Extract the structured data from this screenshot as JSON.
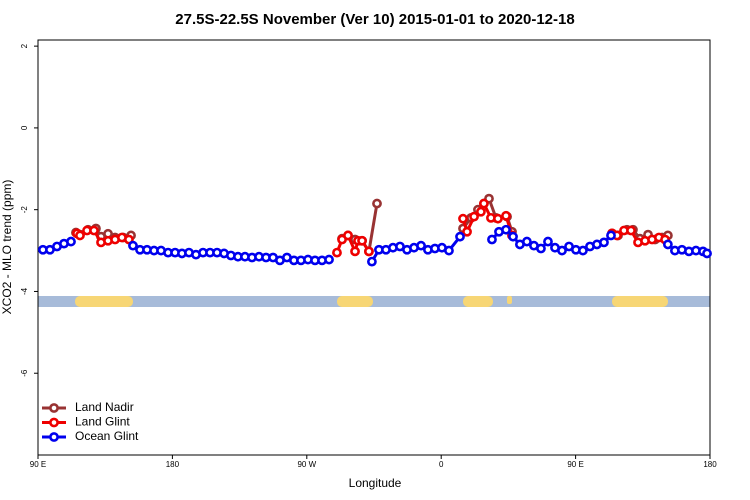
{
  "chart_data": {
    "type": "line",
    "title": "27.5S-22.5S November (Ver 10)   2015-01-01 to 2020-12-18",
    "xlabel": "Longitude",
    "ylabel": "XCO2 - MLO trend (ppm)",
    "xlim": [
      90,
      540
    ],
    "xticks": [
      {
        "value": 90,
        "label": "90 E"
      },
      {
        "value": 180,
        "label": "180"
      },
      {
        "value": 270,
        "label": "90 W"
      },
      {
        "value": 360,
        "label": "0"
      },
      {
        "value": 450,
        "label": "90 E"
      },
      {
        "value": 540,
        "label": "180"
      }
    ],
    "ylim": [
      -8,
      2.15
    ],
    "yticks": [
      2,
      0,
      -2,
      -4,
      -6
    ],
    "legend": "bottom-left",
    "series": [
      {
        "name": "Land Nadir",
        "color": "#993333",
        "x": [
          115.4,
          118.1,
          123.5,
          128.8,
          132.2,
          136.9,
          141.6,
          147.0,
          152.3,
          null,
          293.6,
          297.6,
          302.3,
          307.0,
          311.6,
          317.0,
          null,
          374.6,
          380.0,
          384.6,
          388.6,
          392.0,
          396.7,
          404.1,
          407.4,
          null,
          474.4,
          478.4,
          484.4,
          488.4,
          493.1,
          498.5,
          503.2,
          507.9,
          511.8
        ],
        "values": [
          -2.56,
          -2.61,
          -2.49,
          -2.46,
          -2.66,
          -2.59,
          -2.68,
          -2.68,
          -2.63,
          null,
          -2.71,
          -2.63,
          -2.73,
          -2.76,
          -3.02,
          -1.85,
          null,
          -2.46,
          -2.2,
          -2.0,
          -1.85,
          -1.73,
          -2.2,
          -2.17,
          -2.54,
          null,
          -2.58,
          -2.63,
          -2.49,
          -2.49,
          -2.71,
          -2.61,
          -2.73,
          -2.68,
          -2.63
        ]
      },
      {
        "name": "Land Glint",
        "color": "#ee0000",
        "x": [
          116.1,
          118.1,
          122.8,
          127.5,
          132.2,
          136.9,
          141.6,
          146.2,
          150.9,
          null,
          290.2,
          293.6,
          297.6,
          302.3,
          304.3,
          307.0,
          311.6,
          null,
          374.6,
          377.3,
          382.0,
          386.6,
          388.6,
          393.3,
          398.0,
          403.4,
          407.4,
          null,
          474.4,
          477.7,
          482.4,
          487.1,
          491.8,
          496.5,
          501.2,
          505.8,
          509.9
        ],
        "values": [
          -2.58,
          -2.63,
          -2.51,
          -2.51,
          -2.8,
          -2.76,
          -2.73,
          -2.68,
          -2.73,
          null,
          -3.05,
          -2.73,
          -2.63,
          -3.02,
          -2.76,
          -2.76,
          -3.02,
          null,
          -2.22,
          -2.54,
          -2.17,
          -2.05,
          -1.85,
          -2.2,
          -2.22,
          -2.15,
          -2.63,
          null,
          -2.58,
          -2.63,
          -2.51,
          -2.51,
          -2.8,
          -2.76,
          -2.73,
          -2.68,
          -2.73
        ]
      },
      {
        "name": "Ocean Glint",
        "color": "#0000ee",
        "x": [
          93.3,
          98.0,
          102.7,
          107.4,
          112.1,
          null,
          153.6,
          158.3,
          163.0,
          167.7,
          172.4,
          177.1,
          181.8,
          186.4,
          191.1,
          195.8,
          200.5,
          205.2,
          209.9,
          214.6,
          219.2,
          223.9,
          228.6,
          233.3,
          238.0,
          242.7,
          247.4,
          252.0,
          256.7,
          261.4,
          266.1,
          270.8,
          275.5,
          280.2,
          284.9,
          null,
          313.6,
          318.3,
          323.0,
          327.7,
          332.4,
          337.1,
          341.8,
          346.5,
          351.1,
          355.8,
          360.5,
          365.2,
          372.6,
          null,
          394.0,
          398.7,
          403.4,
          408.1,
          412.7,
          417.4,
          422.1,
          426.8,
          431.5,
          436.2,
          440.9,
          445.6,
          450.2,
          454.9,
          459.6,
          464.3,
          469.0,
          473.7,
          null,
          511.8,
          516.5,
          521.2,
          525.9,
          530.6,
          535.3,
          538.0
        ],
        "values": [
          -2.98,
          -2.98,
          -2.9,
          -2.83,
          -2.78,
          null,
          -2.88,
          -2.98,
          -2.98,
          -3.0,
          -3.0,
          -3.05,
          -3.05,
          -3.07,
          -3.05,
          -3.1,
          -3.05,
          -3.05,
          -3.05,
          -3.07,
          -3.12,
          -3.15,
          -3.15,
          -3.17,
          -3.15,
          -3.17,
          -3.17,
          -3.24,
          -3.17,
          -3.24,
          -3.24,
          -3.22,
          -3.24,
          -3.24,
          -3.22,
          null,
          -3.27,
          -2.98,
          -2.98,
          -2.93,
          -2.9,
          -2.98,
          -2.93,
          -2.88,
          -2.98,
          -2.95,
          -2.93,
          -3.0,
          -2.66,
          null,
          -2.73,
          -2.54,
          -2.49,
          -2.66,
          -2.85,
          -2.78,
          -2.88,
          -2.95,
          -2.78,
          -2.93,
          -3.0,
          -2.9,
          -2.98,
          -3.0,
          -2.9,
          -2.85,
          -2.8,
          -2.63,
          null,
          -2.85,
          -3.0,
          -2.98,
          -3.02,
          -3.0,
          -3.02,
          -3.07
        ]
      }
    ]
  }
}
